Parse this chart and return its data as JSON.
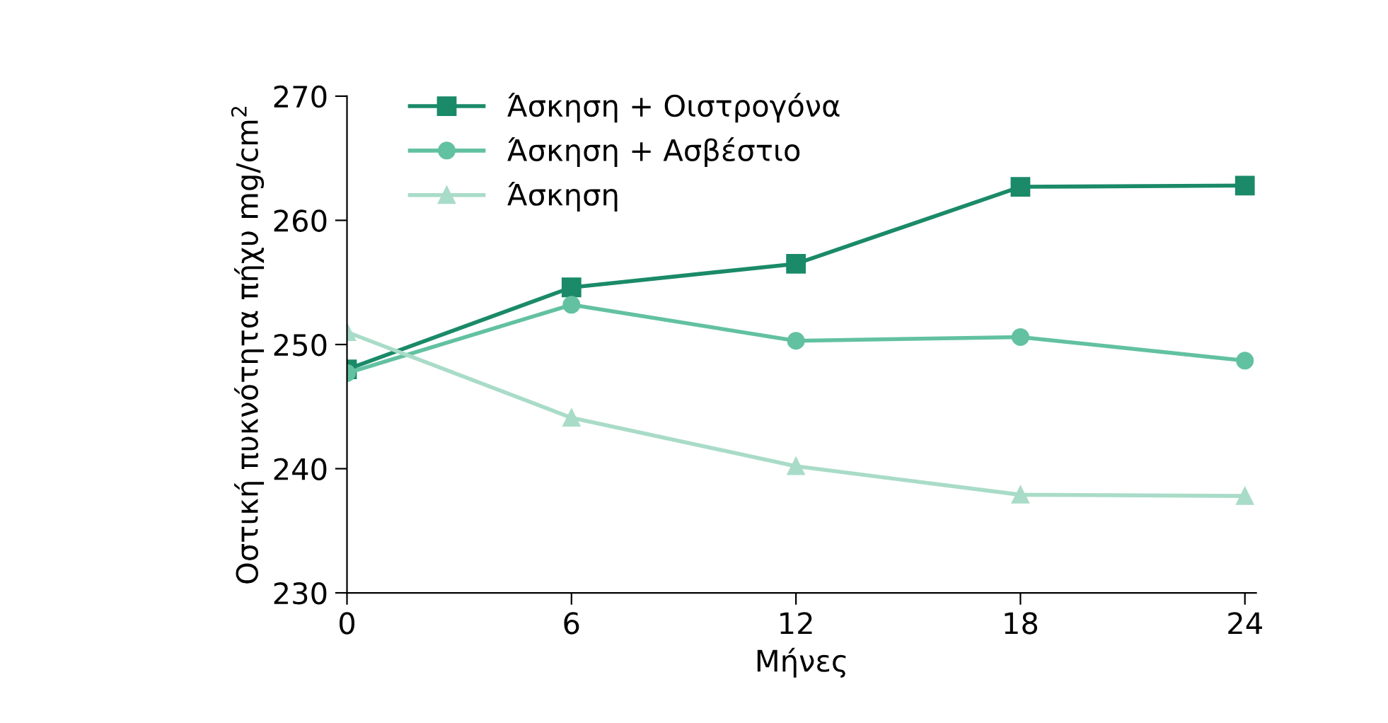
{
  "chart_data": {
    "type": "line",
    "xlabel": "Μήνες",
    "ylabel": "Οστική πυκνότητα πήχυ mg/cm$^{2}$",
    "x": [
      0,
      6,
      12,
      18,
      24
    ],
    "xlim": [
      0,
      24.3
    ],
    "xticks": [
      0,
      6,
      12,
      18,
      24
    ],
    "ylim": [
      230,
      270
    ],
    "yticks": [
      230,
      240,
      250,
      260,
      270
    ],
    "grid": false,
    "legend": "top left",
    "series": [
      {
        "name": "Άσκηση + Οιστρογόνα",
        "color": "#1a8a68",
        "marker": "square",
        "values": [
          248,
          254.6,
          256.5,
          262.7,
          262.8
        ]
      },
      {
        "name": "Άσκηση + Ασβέστιο",
        "color": "#62c1a0",
        "marker": "circle",
        "values": [
          247.7,
          253.2,
          250.3,
          250.6,
          248.7
        ]
      },
      {
        "name": "Άσκηση",
        "color": "#a9dcc8",
        "marker": "triangle",
        "values": [
          251,
          244.1,
          240.2,
          237.9,
          237.8
        ]
      }
    ]
  }
}
